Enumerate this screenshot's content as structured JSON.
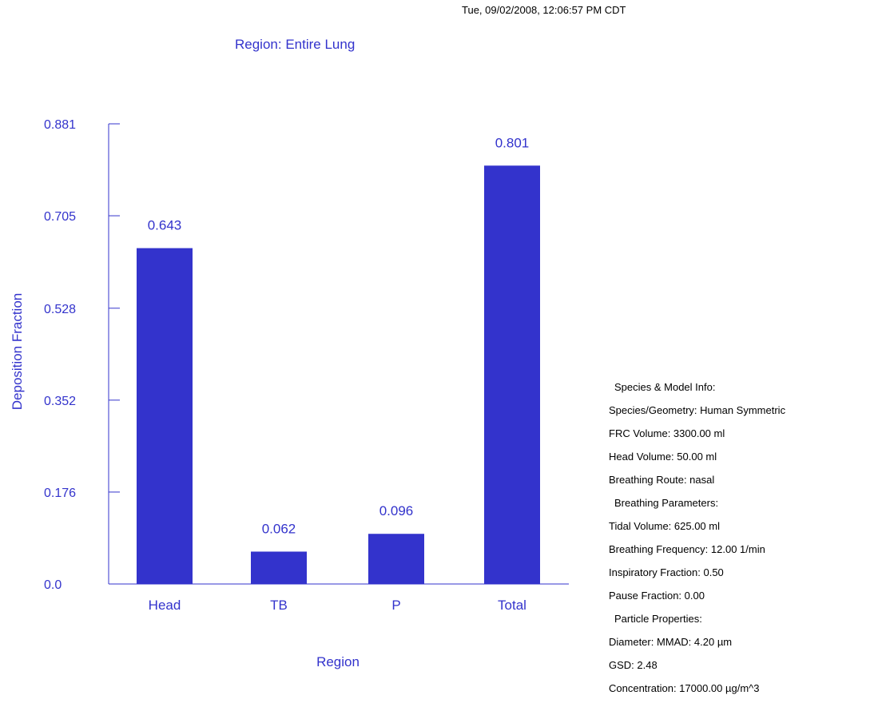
{
  "header": {
    "timestamp": "Tue, 09/02/2008, 12:06:57 PM CDT"
  },
  "chart_data": {
    "type": "bar",
    "title": "Region: Entire Lung",
    "xlabel": "Region",
    "ylabel": "Deposition Fraction",
    "categories": [
      "Head",
      "TB",
      "P",
      "Total"
    ],
    "values": [
      0.643,
      0.062,
      0.096,
      0.801
    ],
    "value_labels": [
      "0.643",
      "0.062",
      "0.096",
      "0.801"
    ],
    "yticks": [
      "0.0",
      "0.176",
      "0.352",
      "0.528",
      "0.705",
      "0.881"
    ],
    "ylim": [
      0,
      0.881
    ],
    "bar_color": "#3333cc",
    "text_color": "#3333cc",
    "grid": false,
    "legend": "none"
  },
  "info": {
    "species_title": "Species & Model Info:",
    "species_geometry": "Species/Geometry: Human Symmetric",
    "frc_volume": "FRC Volume: 3300.00 ml",
    "head_volume": "Head Volume: 50.00 ml",
    "breathing_route": "Breathing Route: nasal",
    "breathing_title": "Breathing Parameters:",
    "tidal_volume": "Tidal Volume: 625.00 ml",
    "breathing_frequency": "Breathing Frequency: 12.00 1/min",
    "inspiratory_fraction": "Inspiratory Fraction: 0.50",
    "pause_fraction": "Pause Fraction: 0.00",
    "particle_title": "Particle Properties:",
    "diameter": "Diameter: MMAD: 4.20 µm",
    "gsd": "GSD: 2.48",
    "concentration": "Concentration: 17000.00 µg/m^3"
  }
}
